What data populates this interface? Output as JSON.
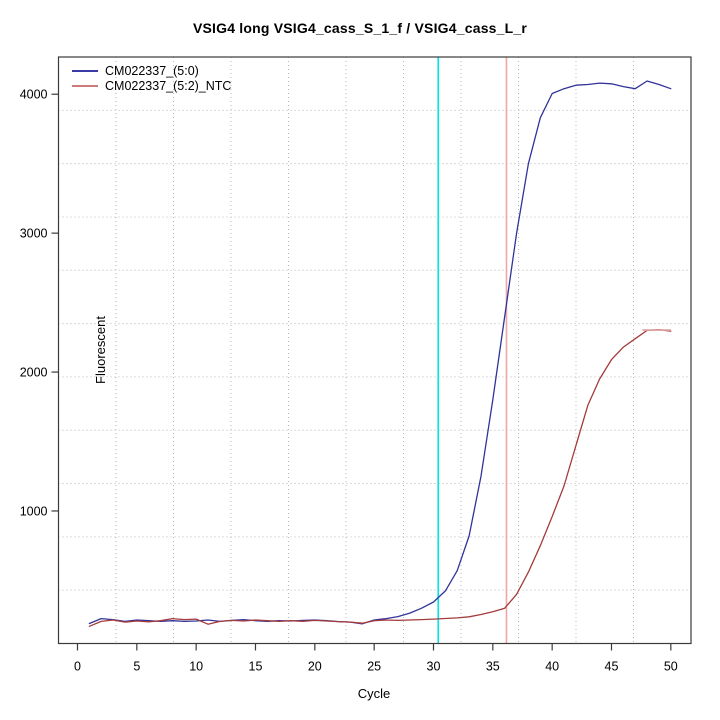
{
  "title": "VSIG4 long VSIG4_cass_S_1_f / VSIG4_cass_L_r",
  "colors": {
    "background": "#ffffff",
    "axis_box": "#3a3a3a",
    "grid": "#b9b9b9",
    "series_blue": "#32329b",
    "series_red": "#a33b3b",
    "threshold_cyan": "#00e5e5",
    "threshold_salmon": "#f2a6a6"
  },
  "chart_data": {
    "type": "line",
    "title": "VSIG4 long VSIG4_cass_S_1_f / VSIG4_cass_L_r",
    "xlabel": "Cycle",
    "ylabel": "Fluorescent",
    "xlim": [
      -1.6,
      51.7
    ],
    "ylim": [
      46,
      4268
    ],
    "x_ticks": [
      0,
      5,
      10,
      15,
      20,
      25,
      30,
      35,
      40,
      45,
      50
    ],
    "y_ticks": [
      1000,
      2000,
      3000,
      4000
    ],
    "grid": {
      "nx": 11,
      "ny": 11,
      "style": "dotted",
      "color": "#b9b9b9"
    },
    "legend": {
      "position": "top-left",
      "entries": [
        {
          "label": "CM022337_(5:0)",
          "swatch": "#3b3ba8"
        },
        {
          "label": "CM022337_(5:2)_NTC",
          "swatch": "#cd7a7a"
        }
      ]
    },
    "x": [
      1,
      2,
      3,
      4,
      5,
      6,
      7,
      8,
      9,
      10,
      11,
      12,
      13,
      14,
      15,
      16,
      17,
      18,
      19,
      20,
      21,
      22,
      23,
      24,
      25,
      26,
      27,
      28,
      29,
      30,
      31,
      32,
      33,
      34,
      35,
      36,
      37,
      38,
      39,
      40,
      41,
      42,
      43,
      44,
      45,
      46,
      47,
      48,
      49,
      50
    ],
    "series": [
      {
        "name": "CM022337_(5:0)",
        "color": "#32329b",
        "values": [
          190,
          225,
          218,
          205,
          215,
          210,
          205,
          210,
          205,
          208,
          215,
          205,
          212,
          218,
          210,
          206,
          210,
          208,
          212,
          215,
          210,
          204,
          200,
          188,
          215,
          225,
          240,
          265,
          300,
          345,
          425,
          570,
          820,
          1250,
          1800,
          2400,
          3000,
          3500,
          3830,
          4005,
          4040,
          4065,
          4070,
          4080,
          4075,
          4055,
          4040,
          4095,
          4070,
          4040
        ]
      },
      {
        "name": "CM022337_(5:2)_NTC",
        "color": "#a33b3b",
        "values": [
          170,
          205,
          215,
          200,
          208,
          202,
          210,
          225,
          218,
          222,
          185,
          205,
          212,
          208,
          215,
          210,
          205,
          210,
          206,
          212,
          208,
          204,
          200,
          192,
          210,
          215,
          212,
          215,
          218,
          222,
          226,
          230,
          238,
          255,
          275,
          300,
          400,
          560,
          750,
          960,
          1180,
          1470,
          1760,
          1950,
          2090,
          2180,
          2240,
          2300,
          2305,
          2295
        ]
      }
    ],
    "markers": {
      "vlines": [
        {
          "x": 30.4,
          "color": "#00e5e5",
          "name": "cyan-threshold-vline"
        },
        {
          "x": 36.15,
          "color": "#f2a6a6",
          "name": "salmon-threshold-vline"
        }
      ],
      "ntc_plateau_segment": {
        "x1": 47.6,
        "x2": 50.0,
        "y": 2302,
        "color": "#dda0a0"
      }
    }
  }
}
